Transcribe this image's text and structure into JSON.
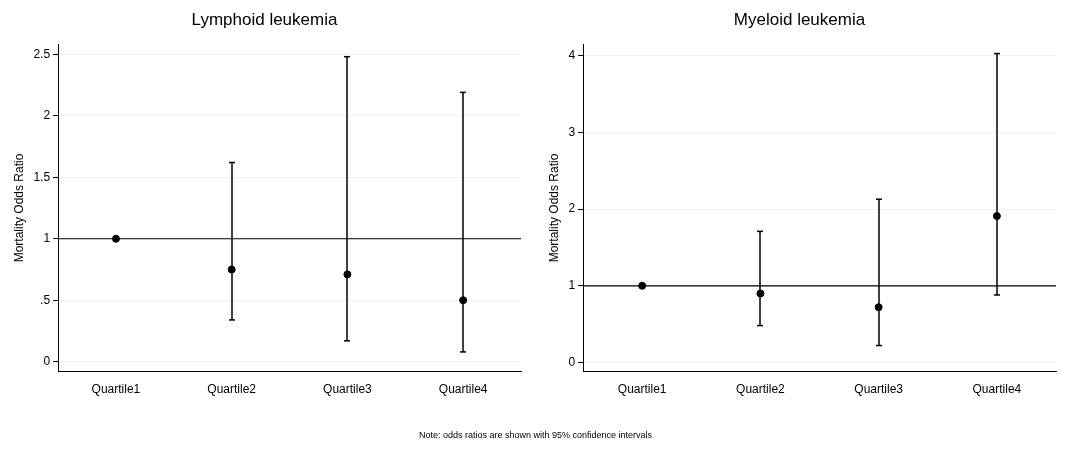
{
  "chart_data": [
    {
      "type": "scatter",
      "title": "Lymphoid leukemia",
      "ylabel": "Mortality Odds Ratio",
      "categories": [
        "Quartile1",
        "Quartile2",
        "Quartile3",
        "Quartile4"
      ],
      "series": [
        {
          "color": "#000000",
          "values": [
            1,
            0.75,
            0.71,
            0.5
          ],
          "errors": [
            null,
            [
              0.34,
              1.62
            ],
            [
              0.17,
              2.48
            ],
            [
              0.08,
              2.19
            ]
          ]
        }
      ],
      "ylim": [
        -0.08,
        2.58
      ],
      "yticks": [
        0,
        {
          "value": 0.5,
          "label": ".5"
        },
        1,
        1.5,
        2,
        2.5
      ],
      "grid": "y",
      "marker": "circle",
      "legend": false,
      "ref_lines": [
        {
          "axis": "y",
          "value": 1,
          "color": "#000000"
        }
      ],
      "annotations": [
        "Note: odds ratios are shown with 95% confidence intervals"
      ]
    },
    {
      "type": "scatter",
      "title": "Myeloid leukemia",
      "ylabel": "Mortality Odds Ratio",
      "categories": [
        "Quartile1",
        "Quartile2",
        "Quartile3",
        "Quartile4"
      ],
      "series": [
        {
          "color": "#000000",
          "values": [
            1,
            0.9,
            0.72,
            1.91
          ],
          "errors": [
            null,
            [
              0.48,
              1.71
            ],
            [
              0.22,
              2.13
            ],
            [
              0.88,
              4.03
            ]
          ]
        }
      ],
      "ylim": [
        -0.12,
        4.15
      ],
      "yticks": [
        0,
        1,
        2,
        3,
        4
      ],
      "grid": "y",
      "marker": "circle",
      "legend": false,
      "ref_lines": [
        {
          "axis": "y",
          "value": 1,
          "color": "#000000"
        }
      ]
    }
  ]
}
